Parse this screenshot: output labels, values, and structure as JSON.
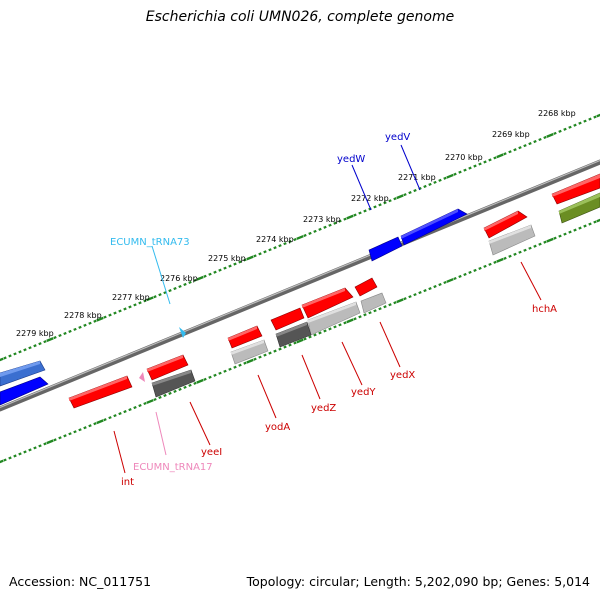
{
  "title": "Escherichia coli UMN026, complete genome",
  "footer": {
    "accession": "Accession: NC_011751",
    "topology": "Topology: circular; Length: 5,202,090 bp; Genes: 5,014"
  },
  "colors": {
    "forward_gene": "#0000ff",
    "reverse_gene": "#ff0000",
    "trna_blue": "#33bbee",
    "trna_pink": "#ee88bb",
    "rna_grey_dark": "#555555",
    "rna_grey_light": "#bbbbbb",
    "olive_feature": "#6b8e23",
    "tick_color": "#228822",
    "backbone": "#888888"
  },
  "kbp_ticks": [
    "2268 kbp",
    "2269 kbp",
    "2270 kbp",
    "2271 kbp",
    "2272 kbp",
    "2273 kbp",
    "2274 kbp",
    "2275 kbp",
    "2276 kbp",
    "2277 kbp",
    "2278 kbp",
    "2279 kbp"
  ],
  "gene_labels": {
    "yedV": "yedV",
    "yedW": "yedW",
    "ecumn_trna73": "ECUMN_tRNA73",
    "hcha": "hchA",
    "yedx": "yedX",
    "yedy": "yedY",
    "yedz": "yedZ",
    "yoda": "yodA",
    "yeei": "yeeI",
    "int": "int",
    "ecumn_trna17": "ECUMN_tRNA17"
  }
}
